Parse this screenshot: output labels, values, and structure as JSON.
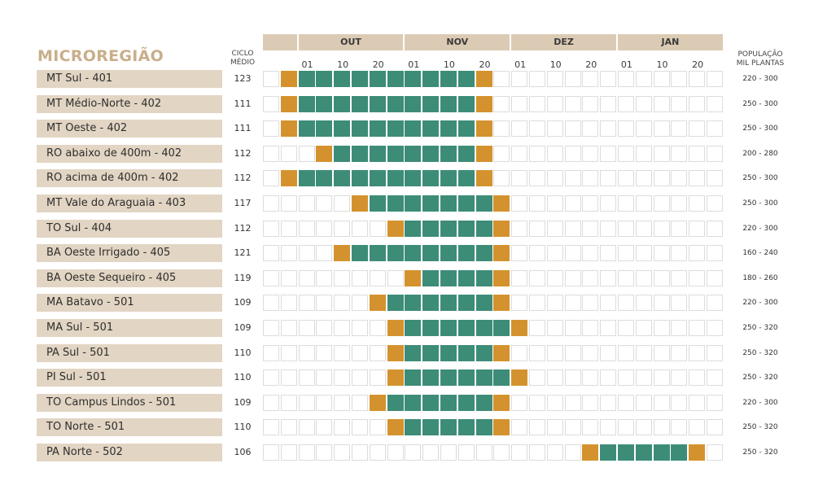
{
  "title": "MICROREGIÃO",
  "ciclo_header": [
    "CICLO",
    "MÉDIO"
  ],
  "pop_header": [
    "POPULAÇÃO",
    "MIL PLANTAS"
  ],
  "colors": {
    "green": "#3d8c78",
    "orange": "#d4922e",
    "label_bg": "#e2d5c3",
    "month_bg": "#dccbb4",
    "title": "#c9ae8a"
  },
  "months": [
    "OUT",
    "NOV",
    "DEZ",
    "JAN"
  ],
  "day_ticks": [
    "01",
    "10",
    "20"
  ],
  "chart_data": {
    "type": "table",
    "columns_per_month": 6,
    "legend_note": "orange = first and last cell of window; green = cells in between",
    "rows": [
      {
        "name": "MT Sul - 401",
        "ciclo": "123",
        "pop": "220 - 300",
        "start_col": 1,
        "end_col": 12
      },
      {
        "name": "MT Médio-Norte - 402",
        "ciclo": "111",
        "pop": "250 - 300",
        "start_col": 1,
        "end_col": 12
      },
      {
        "name": "MT Oeste - 402",
        "ciclo": "111",
        "pop": "250 - 300",
        "start_col": 1,
        "end_col": 12
      },
      {
        "name": "RO abaixo de 400m - 402",
        "ciclo": "112",
        "pop": "200 - 280",
        "start_col": 3,
        "end_col": 12
      },
      {
        "name": "RO acima de 400m - 402",
        "ciclo": "112",
        "pop": "250 - 300",
        "start_col": 1,
        "end_col": 12
      },
      {
        "name": "MT Vale do Araguaia - 403",
        "ciclo": "117",
        "pop": "250 - 300",
        "start_col": 5,
        "end_col": 13
      },
      {
        "name": "TO Sul - 404",
        "ciclo": "112",
        "pop": "220 - 300",
        "start_col": 7,
        "end_col": 13
      },
      {
        "name": "BA Oeste Irrigado - 405",
        "ciclo": "121",
        "pop": "160 - 240",
        "start_col": 4,
        "end_col": 13
      },
      {
        "name": "BA Oeste Sequeiro - 405",
        "ciclo": "119",
        "pop": "180 - 260",
        "start_col": 8,
        "end_col": 13
      },
      {
        "name": "MA Batavo - 501",
        "ciclo": "109",
        "pop": "220 - 300",
        "start_col": 6,
        "end_col": 13
      },
      {
        "name": "MA Sul - 501",
        "ciclo": "109",
        "pop": "250 - 320",
        "start_col": 7,
        "end_col": 14
      },
      {
        "name": "PA Sul - 501",
        "ciclo": "110",
        "pop": "250 - 320",
        "start_col": 7,
        "end_col": 13
      },
      {
        "name": "PI Sul - 501",
        "ciclo": "110",
        "pop": "250 - 320",
        "start_col": 7,
        "end_col": 14
      },
      {
        "name": "TO Campus Lindos - 501",
        "ciclo": "109",
        "pop": "220 - 300",
        "start_col": 6,
        "end_col": 13
      },
      {
        "name": "TO Norte - 501",
        "ciclo": "110",
        "pop": "250 - 320",
        "start_col": 7,
        "end_col": 13
      },
      {
        "name": "PA Norte - 502",
        "ciclo": "106",
        "pop": "250 - 320",
        "start_col": 18,
        "end_col": 24
      }
    ]
  }
}
